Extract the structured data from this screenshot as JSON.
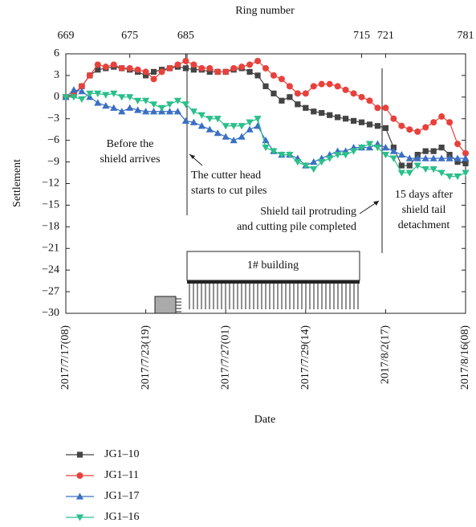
{
  "chart_data": {
    "type": "line",
    "x_title": "Date",
    "x2_title": "Ring number",
    "y_title": "Settlement",
    "categories": [
      "2017/7/17(08)",
      null,
      null,
      null,
      null,
      null,
      null,
      null,
      null,
      null,
      "2017/7/23(19)",
      null,
      null,
      null,
      null,
      null,
      null,
      null,
      null,
      null,
      "2017/7/27(01)",
      null,
      null,
      null,
      null,
      null,
      null,
      null,
      null,
      null,
      "2017/7/29(14)",
      null,
      null,
      null,
      null,
      null,
      null,
      null,
      null,
      null,
      "2017/8/2(17)",
      null,
      null,
      null,
      null,
      null,
      null,
      null,
      null,
      null,
      "2017/8/16(08)"
    ],
    "x2_categories": [
      669,
      null,
      null,
      null,
      null,
      null,
      null,
      null,
      675,
      null,
      null,
      null,
      null,
      null,
      null,
      685,
      null,
      null,
      null,
      null,
      null,
      null,
      null,
      null,
      null,
      null,
      null,
      null,
      null,
      null,
      null,
      null,
      null,
      null,
      null,
      null,
      null,
      715,
      null,
      null,
      721,
      null,
      null,
      null,
      null,
      null,
      null,
      null,
      null,
      null,
      781
    ],
    "ylim": [
      -30,
      6
    ],
    "yticks": [
      6,
      3,
      0,
      {
        "value": -3,
        "label": "−3"
      },
      {
        "value": -6,
        "label": "−6"
      },
      {
        "value": -9,
        "label": "−9"
      },
      {
        "value": -12,
        "label": "−12"
      },
      {
        "value": -15,
        "label": "−15"
      },
      {
        "value": -18,
        "label": "−18"
      },
      {
        "value": -21,
        "label": "−21"
      },
      {
        "value": -24,
        "label": "−24"
      },
      {
        "value": -27,
        "label": "−27"
      },
      {
        "value": -30,
        "label": "−30"
      }
    ],
    "series": [
      {
        "name": "JG1–10",
        "color": "#444444",
        "marker": "square",
        "values": [
          0,
          0.3,
          1.5,
          3,
          3.8,
          4,
          4.2,
          4,
          3.8,
          3.5,
          3,
          3.5,
          3.8,
          4,
          4.2,
          4,
          3.8,
          3.8,
          3.5,
          3.5,
          3.5,
          3.8,
          4,
          3.5,
          3,
          1.5,
          0.5,
          -0.5,
          0,
          -1,
          -1.5,
          -2,
          -2.2,
          -2.5,
          -2.8,
          -3,
          -3.3,
          -3.5,
          -3.8,
          -4,
          -4.3,
          -7,
          -9.5,
          -9.5,
          -8,
          -7.5,
          -7.5,
          -7,
          -8,
          -9,
          -9.2
        ]
      },
      {
        "name": "JG1–11",
        "color": "#e8413c",
        "marker": "circle",
        "values": [
          0,
          0.5,
          1.5,
          3,
          4.5,
          4.2,
          4.5,
          4,
          4,
          3.8,
          3.5,
          2.5,
          3.5,
          4,
          4.5,
          5,
          4.5,
          4,
          4,
          3.5,
          3.5,
          4,
          4.2,
          4.5,
          5,
          4,
          3,
          2.5,
          1.5,
          0.5,
          0.5,
          1.5,
          1.8,
          1.8,
          1.5,
          1,
          0.5,
          0,
          -0.5,
          -1.5,
          -1.5,
          -3,
          -4,
          -4.5,
          -4.8,
          -4.2,
          -3.5,
          -2.7,
          -3.5,
          -6.5,
          -7.8
        ]
      },
      {
        "name": "JG1–17",
        "color": "#3a6fc4",
        "marker": "up",
        "values": [
          0,
          1,
          0.8,
          0,
          -0.8,
          -1.2,
          -1.5,
          -2,
          -1.5,
          -1.8,
          -2,
          -2,
          -2,
          -2,
          -2,
          -3.3,
          -3.5,
          -4,
          -4.5,
          -5,
          -5.5,
          -6,
          -5.5,
          -4.5,
          -4,
          -6,
          -7.5,
          -8,
          -8,
          -8.5,
          -9.5,
          -9,
          -8.5,
          -8,
          -7.5,
          -7.5,
          -7,
          -7,
          -7,
          -6.5,
          -7,
          -7.5,
          -8,
          -8.5,
          -8.5,
          -8.5,
          -8.5,
          -8.5,
          -8.5,
          -8.5,
          -8.5
        ]
      },
      {
        "name": "JG1–16",
        "color": "#2bbf8a",
        "marker": "down",
        "values": [
          0,
          0,
          -0.3,
          0.5,
          0.5,
          0.3,
          0.5,
          0,
          0,
          -0.5,
          -0.5,
          -1,
          -1.5,
          -1,
          -0.5,
          -1,
          -2,
          -2.5,
          -3,
          -3,
          -4,
          -4,
          -4,
          -3.5,
          -3,
          -7,
          -7.5,
          -8,
          -8,
          -9,
          -9.5,
          -10,
          -9,
          -8.5,
          -8,
          -8,
          -7.5,
          -7,
          -6.5,
          -7,
          -8,
          -8.5,
          -10.5,
          -10.5,
          -9.5,
          -10,
          -10,
          -10.5,
          -11,
          -11,
          -10.5
        ]
      }
    ],
    "annotations": [
      {
        "lines": [
          "Before the",
          "shield arrives"
        ]
      },
      {
        "lines": [
          "The cutter head",
          "starts to cut piles"
        ]
      },
      {
        "lines": [
          "Shield tail protruding",
          "and cutting pile completed"
        ]
      },
      {
        "lines": [
          "15 days after",
          "shield tail",
          "detachment"
        ]
      }
    ],
    "building_label": "1# building"
  }
}
